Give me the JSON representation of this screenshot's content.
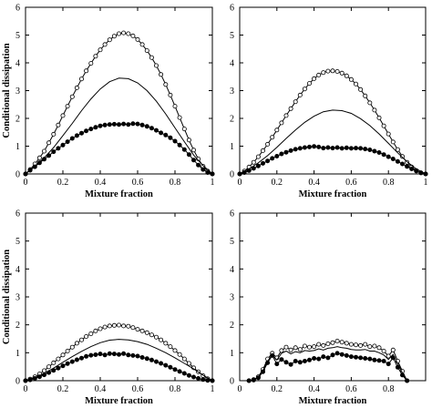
{
  "chart_data": [
    {
      "type": "line",
      "xlabel": "Mixture fraction",
      "ylabel": "Conditional dissipation",
      "xlim": [
        0,
        1
      ],
      "ylim": [
        0,
        6
      ],
      "xticks": [
        "0",
        "0.2",
        "0.4",
        "0.6",
        "0.8",
        "1"
      ],
      "yticks": [
        "0",
        "1",
        "2",
        "3",
        "4",
        "5",
        "6"
      ],
      "grid": false,
      "legend": "none",
      "series": [
        {
          "marker": "open-circle",
          "x": [
            0,
            0.025,
            0.05,
            0.075,
            0.1,
            0.125,
            0.15,
            0.175,
            0.2,
            0.225,
            0.25,
            0.275,
            0.3,
            0.325,
            0.35,
            0.375,
            0.4,
            0.425,
            0.45,
            0.475,
            0.5,
            0.525,
            0.55,
            0.575,
            0.6,
            0.625,
            0.65,
            0.675,
            0.7,
            0.725,
            0.75,
            0.775,
            0.8,
            0.825,
            0.85,
            0.875,
            0.9,
            0.925,
            0.95,
            0.975,
            1.0
          ],
          "y": [
            0.0,
            0.16,
            0.36,
            0.58,
            0.82,
            1.12,
            1.43,
            1.76,
            2.1,
            2.44,
            2.78,
            3.1,
            3.42,
            3.71,
            3.98,
            4.24,
            4.47,
            4.66,
            4.83,
            4.96,
            5.05,
            5.08,
            5.05,
            4.97,
            4.84,
            4.66,
            4.44,
            4.19,
            3.9,
            3.58,
            3.22,
            2.84,
            2.44,
            2.03,
            1.62,
            1.22,
            0.86,
            0.54,
            0.28,
            0.1,
            0.0
          ]
        },
        {
          "marker": "none",
          "x": [
            0,
            0.05,
            0.1,
            0.15,
            0.2,
            0.25,
            0.3,
            0.35,
            0.4,
            0.45,
            0.5,
            0.55,
            0.6,
            0.65,
            0.7,
            0.75,
            0.8,
            0.85,
            0.9,
            0.95,
            1.0
          ],
          "y": [
            0.0,
            0.28,
            0.58,
            0.95,
            1.38,
            1.82,
            2.28,
            2.7,
            3.06,
            3.32,
            3.45,
            3.43,
            3.28,
            3.0,
            2.62,
            2.16,
            1.66,
            1.16,
            0.68,
            0.3,
            0.0
          ]
        },
        {
          "marker": "filled-circle",
          "x": [
            0,
            0.025,
            0.05,
            0.075,
            0.1,
            0.125,
            0.15,
            0.175,
            0.2,
            0.225,
            0.25,
            0.275,
            0.3,
            0.325,
            0.35,
            0.375,
            0.4,
            0.425,
            0.45,
            0.475,
            0.5,
            0.525,
            0.55,
            0.575,
            0.6,
            0.625,
            0.65,
            0.675,
            0.7,
            0.725,
            0.75,
            0.775,
            0.8,
            0.825,
            0.85,
            0.875,
            0.9,
            0.925,
            0.95,
            0.975,
            1.0
          ],
          "y": [
            0.0,
            0.13,
            0.26,
            0.4,
            0.53,
            0.66,
            0.8,
            0.92,
            1.04,
            1.16,
            1.28,
            1.38,
            1.47,
            1.55,
            1.62,
            1.68,
            1.73,
            1.76,
            1.78,
            1.79,
            1.78,
            1.8,
            1.78,
            1.81,
            1.8,
            1.76,
            1.71,
            1.65,
            1.57,
            1.48,
            1.4,
            1.3,
            1.18,
            1.04,
            0.88,
            0.7,
            0.5,
            0.32,
            0.16,
            0.05,
            0.0
          ]
        }
      ]
    },
    {
      "type": "line",
      "xlabel": "Mixture fraction",
      "ylabel": "",
      "xlim": [
        0,
        1
      ],
      "ylim": [
        0,
        6
      ],
      "xticks": [
        "0",
        "0.2",
        "0.4",
        "0.6",
        "0.8",
        "1"
      ],
      "yticks": [
        "0",
        "1",
        "2",
        "3",
        "4",
        "5",
        "6"
      ],
      "grid": false,
      "legend": "none",
      "series": [
        {
          "marker": "open-circle",
          "x": [
            0,
            0.025,
            0.05,
            0.075,
            0.1,
            0.125,
            0.15,
            0.175,
            0.2,
            0.225,
            0.25,
            0.275,
            0.3,
            0.325,
            0.35,
            0.375,
            0.4,
            0.425,
            0.45,
            0.475,
            0.5,
            0.525,
            0.55,
            0.575,
            0.6,
            0.625,
            0.65,
            0.675,
            0.7,
            0.725,
            0.75,
            0.775,
            0.8,
            0.825,
            0.85,
            0.875,
            0.9,
            0.925,
            0.95,
            0.975,
            1.0
          ],
          "y": [
            0.0,
            0.1,
            0.25,
            0.42,
            0.62,
            0.84,
            1.07,
            1.32,
            1.58,
            1.84,
            2.1,
            2.35,
            2.6,
            2.84,
            3.06,
            3.26,
            3.43,
            3.56,
            3.65,
            3.7,
            3.71,
            3.69,
            3.63,
            3.53,
            3.4,
            3.24,
            3.04,
            2.81,
            2.56,
            2.3,
            2.02,
            1.73,
            1.44,
            1.15,
            0.88,
            0.63,
            0.42,
            0.25,
            0.12,
            0.04,
            0.0
          ]
        },
        {
          "marker": "none",
          "x": [
            0,
            0.05,
            0.1,
            0.15,
            0.2,
            0.25,
            0.3,
            0.35,
            0.4,
            0.45,
            0.5,
            0.55,
            0.6,
            0.65,
            0.7,
            0.75,
            0.8,
            0.85,
            0.9,
            0.95,
            1.0
          ],
          "y": [
            0.0,
            0.18,
            0.4,
            0.66,
            0.96,
            1.28,
            1.58,
            1.86,
            2.08,
            2.24,
            2.3,
            2.28,
            2.18,
            1.99,
            1.74,
            1.44,
            1.1,
            0.76,
            0.44,
            0.18,
            0.0
          ]
        },
        {
          "marker": "filled-circle",
          "x": [
            0,
            0.025,
            0.05,
            0.075,
            0.1,
            0.125,
            0.15,
            0.175,
            0.2,
            0.225,
            0.25,
            0.275,
            0.3,
            0.325,
            0.35,
            0.375,
            0.4,
            0.425,
            0.45,
            0.475,
            0.5,
            0.525,
            0.55,
            0.575,
            0.6,
            0.625,
            0.65,
            0.675,
            0.7,
            0.725,
            0.75,
            0.775,
            0.8,
            0.825,
            0.85,
            0.875,
            0.9,
            0.925,
            0.95,
            0.975,
            1.0
          ],
          "y": [
            0.0,
            0.05,
            0.12,
            0.2,
            0.29,
            0.38,
            0.47,
            0.56,
            0.64,
            0.72,
            0.78,
            0.84,
            0.89,
            0.92,
            0.95,
            0.97,
            0.99,
            0.97,
            0.93,
            0.95,
            0.93,
            0.95,
            0.92,
            0.94,
            0.92,
            0.93,
            0.92,
            0.9,
            0.87,
            0.82,
            0.77,
            0.7,
            0.62,
            0.54,
            0.45,
            0.36,
            0.27,
            0.18,
            0.1,
            0.04,
            0.0
          ]
        }
      ]
    },
    {
      "type": "line",
      "xlabel": "Mixture fraction",
      "ylabel": "Conditional dissipation",
      "xlim": [
        0,
        1
      ],
      "ylim": [
        0,
        6
      ],
      "xticks": [
        "0",
        "0.2",
        "0.4",
        "0.6",
        "0.8",
        "1"
      ],
      "yticks": [
        "0",
        "1",
        "2",
        "3",
        "4",
        "5",
        "6"
      ],
      "grid": false,
      "legend": "none",
      "series": [
        {
          "marker": "open-circle",
          "x": [
            0,
            0.025,
            0.05,
            0.075,
            0.1,
            0.125,
            0.15,
            0.175,
            0.2,
            0.225,
            0.25,
            0.275,
            0.3,
            0.325,
            0.35,
            0.375,
            0.4,
            0.425,
            0.45,
            0.475,
            0.5,
            0.525,
            0.55,
            0.575,
            0.6,
            0.625,
            0.65,
            0.675,
            0.7,
            0.725,
            0.75,
            0.775,
            0.8,
            0.825,
            0.85,
            0.875,
            0.9,
            0.925,
            0.95,
            0.975,
            1.0
          ],
          "y": [
            0.0,
            0.06,
            0.14,
            0.24,
            0.36,
            0.5,
            0.64,
            0.78,
            0.92,
            1.06,
            1.2,
            1.34,
            1.46,
            1.58,
            1.68,
            1.78,
            1.86,
            1.92,
            1.96,
            1.98,
            1.99,
            1.96,
            1.95,
            1.9,
            1.84,
            1.78,
            1.72,
            1.64,
            1.56,
            1.46,
            1.34,
            1.22,
            1.08,
            0.94,
            0.78,
            0.62,
            0.46,
            0.32,
            0.18,
            0.07,
            0.0
          ]
        },
        {
          "marker": "none",
          "x": [
            0,
            0.05,
            0.1,
            0.15,
            0.2,
            0.25,
            0.3,
            0.35,
            0.4,
            0.45,
            0.5,
            0.55,
            0.6,
            0.65,
            0.7,
            0.75,
            0.8,
            0.85,
            0.9,
            0.95,
            1.0
          ],
          "y": [
            0.0,
            0.1,
            0.26,
            0.45,
            0.66,
            0.86,
            1.05,
            1.22,
            1.36,
            1.45,
            1.48,
            1.46,
            1.4,
            1.3,
            1.16,
            1.0,
            0.82,
            0.62,
            0.42,
            0.2,
            0.0
          ]
        },
        {
          "marker": "filled-circle",
          "x": [
            0,
            0.025,
            0.05,
            0.075,
            0.1,
            0.125,
            0.15,
            0.175,
            0.2,
            0.225,
            0.25,
            0.275,
            0.3,
            0.325,
            0.35,
            0.375,
            0.4,
            0.425,
            0.45,
            0.475,
            0.5,
            0.525,
            0.55,
            0.575,
            0.6,
            0.625,
            0.65,
            0.675,
            0.7,
            0.725,
            0.75,
            0.775,
            0.8,
            0.825,
            0.85,
            0.875,
            0.9,
            0.925,
            0.95,
            0.975,
            1.0
          ],
          "y": [
            0.0,
            0.03,
            0.08,
            0.14,
            0.21,
            0.29,
            0.37,
            0.45,
            0.53,
            0.61,
            0.68,
            0.75,
            0.81,
            0.87,
            0.91,
            0.93,
            0.96,
            0.92,
            0.97,
            0.96,
            0.94,
            0.97,
            0.92,
            0.9,
            0.88,
            0.83,
            0.79,
            0.74,
            0.68,
            0.62,
            0.55,
            0.48,
            0.4,
            0.33,
            0.26,
            0.19,
            0.13,
            0.08,
            0.04,
            0.01,
            0.0
          ]
        }
      ]
    },
    {
      "type": "line",
      "xlabel": "Mixture fraction",
      "ylabel": "",
      "xlim": [
        0,
        1
      ],
      "ylim": [
        0,
        6
      ],
      "xticks": [
        "0",
        "0.2",
        "0.4",
        "0.6",
        "0.8"
      ],
      "yticks": [
        "0",
        "1",
        "2",
        "3",
        "4",
        "5",
        "6"
      ],
      "grid": false,
      "legend": "none",
      "series": [
        {
          "marker": "open-circle",
          "x": [
            0.05,
            0.075,
            0.1,
            0.125,
            0.15,
            0.175,
            0.2,
            0.225,
            0.25,
            0.275,
            0.3,
            0.325,
            0.35,
            0.375,
            0.4,
            0.425,
            0.45,
            0.475,
            0.5,
            0.525,
            0.55,
            0.575,
            0.6,
            0.625,
            0.65,
            0.675,
            0.7,
            0.725,
            0.75,
            0.775,
            0.8,
            0.825,
            0.85,
            0.875,
            0.9
          ],
          "y": [
            0.0,
            0.04,
            0.14,
            0.4,
            0.78,
            0.98,
            0.82,
            1.08,
            1.2,
            1.1,
            1.18,
            1.12,
            1.24,
            1.2,
            1.22,
            1.3,
            1.26,
            1.32,
            1.36,
            1.42,
            1.38,
            1.34,
            1.3,
            1.28,
            1.26,
            1.3,
            1.22,
            1.24,
            1.18,
            1.06,
            0.88,
            1.1,
            0.7,
            0.34,
            0.0
          ]
        },
        {
          "marker": "none",
          "x": [
            0.05,
            0.075,
            0.1,
            0.125,
            0.15,
            0.175,
            0.2,
            0.225,
            0.25,
            0.275,
            0.3,
            0.325,
            0.35,
            0.375,
            0.4,
            0.425,
            0.45,
            0.475,
            0.5,
            0.525,
            0.55,
            0.575,
            0.6,
            0.625,
            0.65,
            0.675,
            0.7,
            0.725,
            0.75,
            0.775,
            0.8,
            0.825,
            0.85,
            0.875,
            0.9
          ],
          "y": [
            0.0,
            0.03,
            0.12,
            0.36,
            0.7,
            0.92,
            0.74,
            0.98,
            1.06,
            0.96,
            1.04,
            1.0,
            1.08,
            1.06,
            1.08,
            1.14,
            1.1,
            1.16,
            1.18,
            1.22,
            1.18,
            1.16,
            1.12,
            1.1,
            1.1,
            1.12,
            1.06,
            1.06,
            1.0,
            0.92,
            0.76,
            0.94,
            0.6,
            0.28,
            0.0
          ]
        },
        {
          "marker": "filled-circle",
          "x": [
            0.05,
            0.075,
            0.1,
            0.125,
            0.15,
            0.175,
            0.2,
            0.225,
            0.25,
            0.275,
            0.3,
            0.325,
            0.35,
            0.375,
            0.4,
            0.425,
            0.45,
            0.475,
            0.5,
            0.525,
            0.55,
            0.575,
            0.6,
            0.625,
            0.65,
            0.675,
            0.7,
            0.725,
            0.75,
            0.775,
            0.8,
            0.825,
            0.85,
            0.875,
            0.9
          ],
          "y": [
            0.0,
            0.02,
            0.1,
            0.32,
            0.64,
            0.9,
            0.6,
            0.76,
            0.66,
            0.58,
            0.7,
            0.66,
            0.7,
            0.74,
            0.8,
            0.78,
            0.86,
            0.82,
            0.92,
            0.98,
            0.94,
            0.9,
            0.86,
            0.84,
            0.82,
            0.8,
            0.78,
            0.74,
            0.72,
            0.7,
            0.6,
            0.82,
            0.48,
            0.2,
            0.0
          ]
        }
      ]
    }
  ]
}
